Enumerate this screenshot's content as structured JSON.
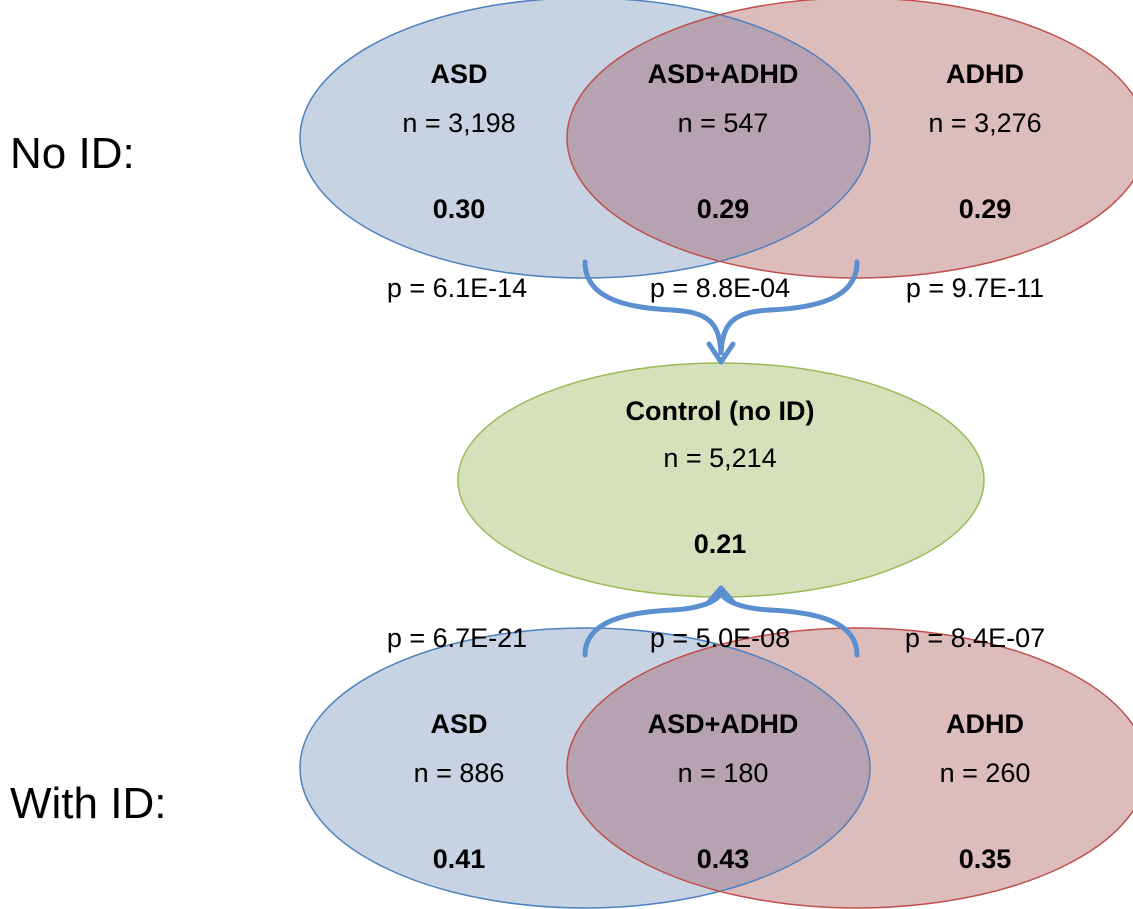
{
  "colors": {
    "asd_fill": "#c7d3e2",
    "asd_stroke": "#4f81bd",
    "adhd_fill": "#ddbcbc",
    "adhd_stroke": "#c0504d",
    "overlap_fill": "#b7a2b2",
    "control_fill": "#d6e1bc",
    "control_stroke": "#9bbb59",
    "brace_stroke": "#5b8fcf"
  },
  "no_id": {
    "label": "No ID:",
    "asd": {
      "name": "ASD",
      "n": "n = 3,198",
      "value": "0.30"
    },
    "both": {
      "name": "ASD+ADHD",
      "n": "n = 547",
      "value": "0.29"
    },
    "adhd": {
      "name": "ADHD",
      "n": "n = 3,276",
      "value": "0.29"
    },
    "p_asd": "p = 6.1E-14",
    "p_both": "p = 8.8E-04",
    "p_adhd": "p = 9.7E-11"
  },
  "control": {
    "name": "Control (no ID)",
    "n": "n = 5,214",
    "value": "0.21"
  },
  "with_id": {
    "label": "With ID:",
    "asd": {
      "name": "ASD",
      "n": "n = 886",
      "value": "0.41"
    },
    "both": {
      "name": "ASD+ADHD",
      "n": "n = 180",
      "value": "0.43"
    },
    "adhd": {
      "name": "ADHD",
      "n": "n = 260",
      "value": "0.35"
    },
    "p_asd": "p = 6.7E-21",
    "p_both": "p = 5.0E-08",
    "p_adhd": "p = 8.4E-07"
  }
}
